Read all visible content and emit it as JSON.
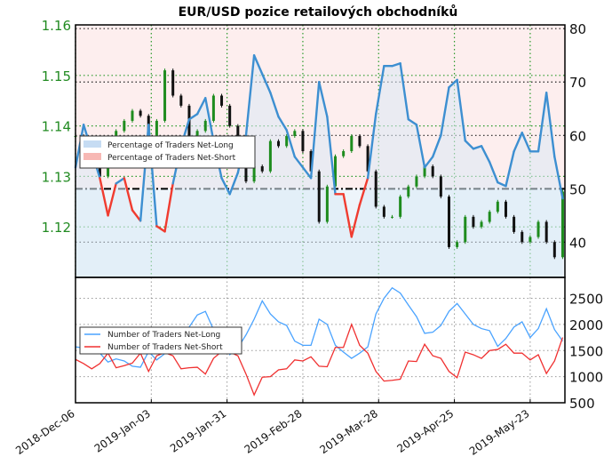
{
  "chart_data": [
    {
      "type": "line",
      "title": "EUR/USD pozice retailových obchodníků",
      "left_axis": {
        "ticks": [
          "1.16",
          "1.15",
          "1.14",
          "1.13",
          "1.12"
        ],
        "ylim": [
          1.11,
          1.16
        ],
        "color": "#228b22"
      },
      "right_axis": {
        "ticks": [
          "80",
          "70",
          "60",
          "50",
          "40"
        ],
        "ylim": [
          33.4,
          80.7
        ]
      },
      "reference_line": 50,
      "legend": {
        "position": "left",
        "entries": [
          "Percentage of Traders Net-Long",
          "Percentage of Traders Net-Short"
        ]
      },
      "colors": {
        "net_long": "#3d8fd1",
        "net_short": "#f03c30",
        "bull_candle": "#1e8c1e",
        "bear_candle": "#111111",
        "long_zone": "#eef5fb",
        "short_zone": "#fdeeee"
      },
      "x": [
        "2018-12-06",
        "2018-12-09",
        "2018-12-12",
        "2018-12-15",
        "2018-12-18",
        "2018-12-21",
        "2018-12-24",
        "2018-12-27",
        "2018-12-30",
        "2019-01-02",
        "2019-01-05",
        "2019-01-08",
        "2019-01-11",
        "2019-01-14",
        "2019-01-17",
        "2019-01-20",
        "2019-01-23",
        "2019-01-26",
        "2019-01-29",
        "2019-02-01",
        "2019-02-04",
        "2019-02-07",
        "2019-02-10",
        "2019-02-13",
        "2019-02-16",
        "2019-02-19",
        "2019-02-22",
        "2019-02-25",
        "2019-02-28",
        "2019-03-03",
        "2019-03-06",
        "2019-03-09",
        "2019-03-12",
        "2019-03-15",
        "2019-03-18",
        "2019-03-21",
        "2019-03-24",
        "2019-03-27",
        "2019-03-30",
        "2019-04-02",
        "2019-04-05",
        "2019-04-08",
        "2019-04-11",
        "2019-04-14",
        "2019-04-17",
        "2019-04-20",
        "2019-04-23",
        "2019-04-26",
        "2019-04-29",
        "2019-05-02",
        "2019-05-05",
        "2019-05-08",
        "2019-05-11",
        "2019-05-14",
        "2019-05-17",
        "2019-05-20",
        "2019-05-23",
        "2019-05-26",
        "2019-05-29",
        "2019-06-01",
        "2019-06-04"
      ],
      "price_close": [
        1.138,
        1.137,
        1.133,
        1.13,
        1.135,
        1.139,
        1.141,
        1.143,
        1.142,
        1.137,
        1.141,
        1.151,
        1.146,
        1.144,
        1.137,
        1.139,
        1.141,
        1.146,
        1.144,
        1.14,
        1.133,
        1.129,
        1.132,
        1.131,
        1.137,
        1.136,
        1.138,
        1.139,
        1.135,
        1.131,
        1.121,
        1.128,
        1.134,
        1.135,
        1.138,
        1.136,
        1.131,
        1.124,
        1.122,
        1.122,
        1.126,
        1.128,
        1.13,
        1.132,
        1.13,
        1.126,
        1.116,
        1.117,
        1.122,
        1.12,
        1.121,
        1.123,
        1.125,
        1.122,
        1.119,
        1.117,
        1.118,
        1.121,
        1.117,
        1.114,
        1.127
      ],
      "pct_net_long": [
        54,
        62,
        57,
        52,
        45,
        51,
        52,
        46,
        44,
        62,
        43,
        42,
        51,
        58,
        63,
        64,
        67,
        59,
        52,
        49,
        53,
        60,
        75,
        71.5,
        68,
        63.5,
        61,
        56,
        54,
        52,
        70,
        63.5,
        49,
        49,
        41,
        47,
        52,
        64,
        73,
        73,
        73.5,
        63,
        62,
        54,
        56,
        60,
        69,
        70.4,
        59,
        57.5,
        58,
        55,
        51.2,
        50.5,
        57,
        60.5,
        57,
        57,
        68,
        56,
        48.2
      ]
    },
    {
      "type": "line",
      "right_axis": {
        "ticks": [
          "2500",
          "2000",
          "1500",
          "1000",
          "500"
        ],
        "ylim": [
          500,
          2900
        ]
      },
      "x_tick_labels": [
        "2018-Dec-06",
        "2019-Jan-03",
        "2019-Jan-31",
        "2019-Feb-28",
        "2019-Mar-28",
        "2019-Apr-25",
        "2019-May-23"
      ],
      "x_tick_dates": [
        "2018-12-06",
        "2019-01-03",
        "2019-01-31",
        "2019-02-28",
        "2019-03-28",
        "2019-04-25",
        "2019-05-23"
      ],
      "legend": {
        "position": "left"
      },
      "series": [
        {
          "name": "Number of Traders Net-Long",
          "color": "#4aa3ff",
          "values": [
            1570,
            1550,
            1500,
            1450,
            1280,
            1340,
            1300,
            1200,
            1180,
            1480,
            1320,
            1440,
            1520,
            1650,
            1950,
            2180,
            2250,
            1900,
            1680,
            1420,
            1550,
            1800,
            2100,
            2450,
            2200,
            2050,
            1980,
            1680,
            1600,
            1600,
            2100,
            2000,
            1600,
            1470,
            1350,
            1450,
            1570,
            2200,
            2500,
            2700,
            2600,
            2370,
            2150,
            1830,
            1850,
            1980,
            2250,
            2400,
            2200,
            2000,
            1920,
            1880,
            1580,
            1730,
            1950,
            2050,
            1750,
            1920,
            2300,
            1900,
            1680
          ]
        },
        {
          "name": "Number of Traders Net-Short",
          "color": "#f03030",
          "values": [
            1330,
            1250,
            1150,
            1250,
            1450,
            1170,
            1210,
            1260,
            1450,
            1100,
            1400,
            1460,
            1400,
            1150,
            1170,
            1180,
            1050,
            1350,
            1480,
            1470,
            1400,
            1050,
            650,
            990,
            1000,
            1130,
            1150,
            1320,
            1300,
            1380,
            1200,
            1190,
            1560,
            1560,
            2000,
            1600,
            1450,
            1100,
            915,
            930,
            950,
            1300,
            1290,
            1620,
            1400,
            1350,
            1100,
            980,
            1470,
            1420,
            1350,
            1500,
            1520,
            1620,
            1450,
            1450,
            1320,
            1420,
            1060,
            1300,
            1750
          ]
        }
      ]
    }
  ]
}
